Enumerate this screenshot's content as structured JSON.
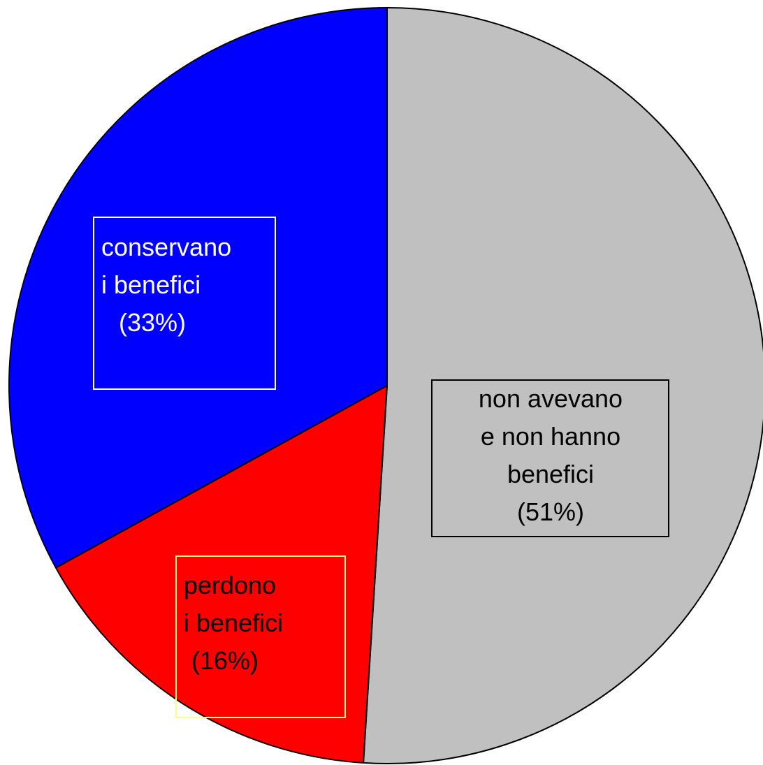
{
  "chart_data": {
    "type": "pie",
    "title": "",
    "slices": [
      {
        "label_lines": [
          "non avevano",
          "e non hanno",
          "benefici",
          "(51%)"
        ],
        "value": 51,
        "color": "#c0c0c0",
        "text_color": "#000000",
        "label_border": "#000000"
      },
      {
        "label_lines": [
          "perdono",
          "i benefici",
          "(16%)"
        ],
        "value": 16,
        "color": "#ff0000",
        "text_color": "#000000",
        "label_border": "#ffff80"
      },
      {
        "label_lines": [
          "conservano",
          "i benefici",
          "(33%)"
        ],
        "value": 33,
        "color": "#0000ff",
        "text_color": "#ffffff",
        "label_border": "#ffffff"
      }
    ],
    "start_angle_deg": 0,
    "direction": "clockwise",
    "legend": "none"
  }
}
